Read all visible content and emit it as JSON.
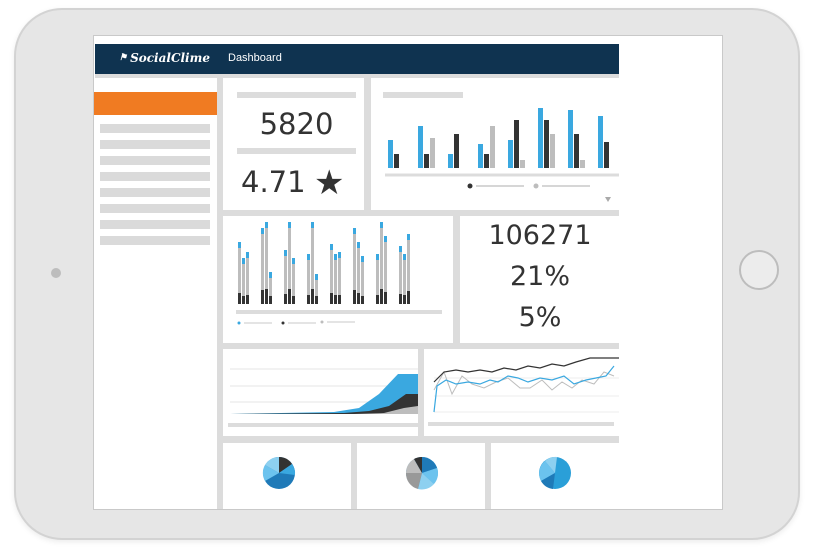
{
  "app": {
    "logo_text": "SocialClime",
    "logo_icon": "flag-icon",
    "nav_title": "Dashboard"
  },
  "colors": {
    "navy": "#0f3350",
    "orange": "#f07b22",
    "blue": "#3aa8e0",
    "dark": "#333333",
    "gray": "#bdbdbd",
    "panel": "#dcdcdc"
  },
  "stats": {
    "count": "5820",
    "rating": "4.71",
    "rating_icon": "star-icon",
    "total": "106271",
    "pct_a": "21%",
    "pct_b": "5%"
  },
  "charts": {
    "filter_icon": "triangle-down-icon"
  }
}
